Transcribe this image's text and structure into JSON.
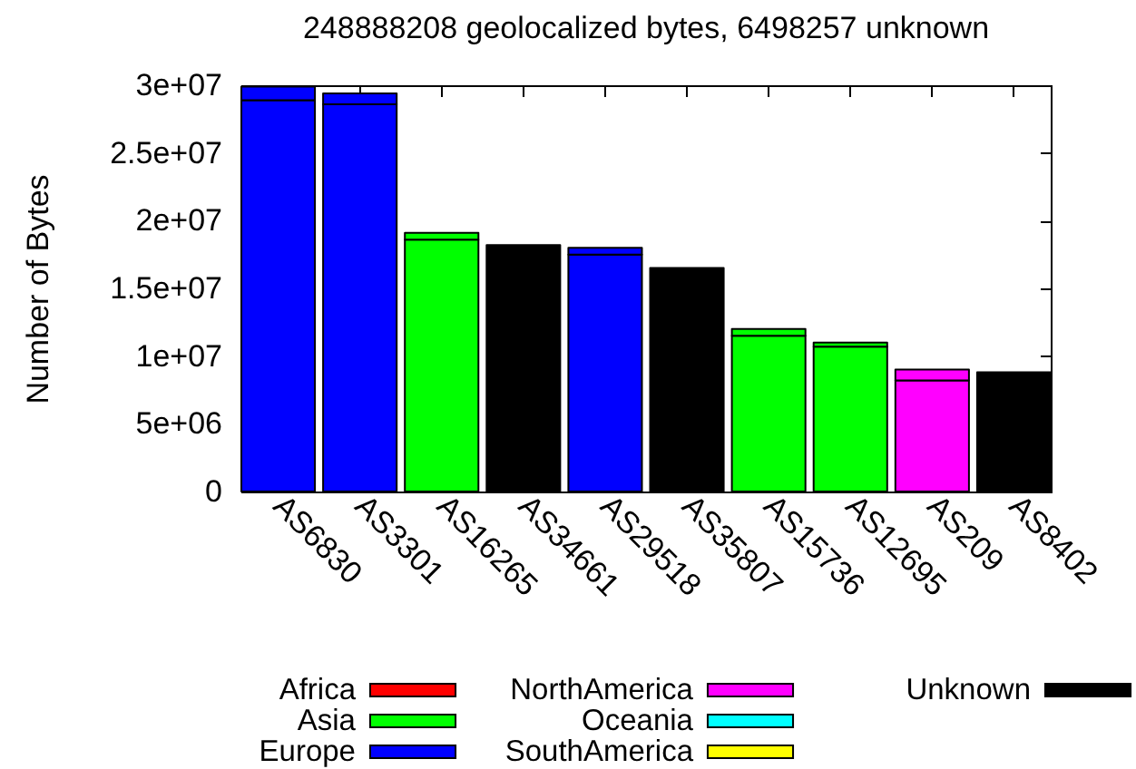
{
  "chart_data": {
    "type": "bar",
    "title": "248888208 geolocalized bytes, 6498257 unknown",
    "ylabel": "Number of Bytes",
    "categories": [
      "AS6830",
      "AS3301",
      "AS16265",
      "AS34661",
      "AS29518",
      "AS35807",
      "AS15736",
      "AS12695",
      "AS209",
      "AS8402"
    ],
    "stacked": true,
    "series": [
      {
        "name": "Africa",
        "color": "#ff0000",
        "values": [
          null,
          null,
          null,
          null,
          null,
          null,
          null,
          null,
          null,
          null
        ]
      },
      {
        "name": "Asia",
        "color": "#00ff00",
        "values": [
          null,
          null,
          18600000,
          null,
          null,
          null,
          11500000,
          10700000,
          null,
          null
        ]
      },
      {
        "name": "Europe",
        "color": "#0000ff",
        "values": [
          28900000,
          28600000,
          null,
          null,
          17500000,
          null,
          null,
          null,
          null,
          null
        ]
      },
      {
        "name": "NorthAmerica",
        "color": "#ff00ff",
        "values": [
          null,
          null,
          null,
          null,
          null,
          null,
          null,
          null,
          8200000,
          null
        ]
      },
      {
        "name": "Oceania",
        "color": "#00ffff",
        "values": [
          null,
          null,
          null,
          null,
          null,
          null,
          null,
          null,
          null,
          null
        ]
      },
      {
        "name": "SouthAmerica",
        "color": "#ffff00",
        "values": [
          null,
          null,
          null,
          null,
          null,
          null,
          null,
          null,
          null,
          null
        ]
      },
      {
        "name": "Unknown",
        "color": "#000000",
        "values": [
          null,
          null,
          null,
          18200000,
          null,
          16500000,
          null,
          null,
          null,
          8800000
        ]
      },
      {
        "colors": [
          "#0000ff",
          "#0000ff",
          "#00ff00",
          null,
          "#0000ff",
          null,
          "#00ff00",
          "#00ff00",
          "#ff00ff",
          null
        ],
        "values": [
          1000000,
          800000,
          500000,
          null,
          500000,
          null,
          500000,
          300000,
          800000,
          null
        ]
      }
    ],
    "ylim": [
      0,
      30000000
    ],
    "yticks": [
      0,
      {
        "value": 5000000,
        "label": "5e+06"
      },
      {
        "value": 10000000,
        "label": "1e+07"
      },
      {
        "value": 15000000,
        "label": "1.5e+07"
      },
      {
        "value": 20000000,
        "label": "2e+07"
      },
      {
        "value": 25000000,
        "label": "2.5e+07"
      },
      {
        "value": 30000000,
        "label": "3e+07"
      }
    ],
    "legend": "bottom"
  }
}
